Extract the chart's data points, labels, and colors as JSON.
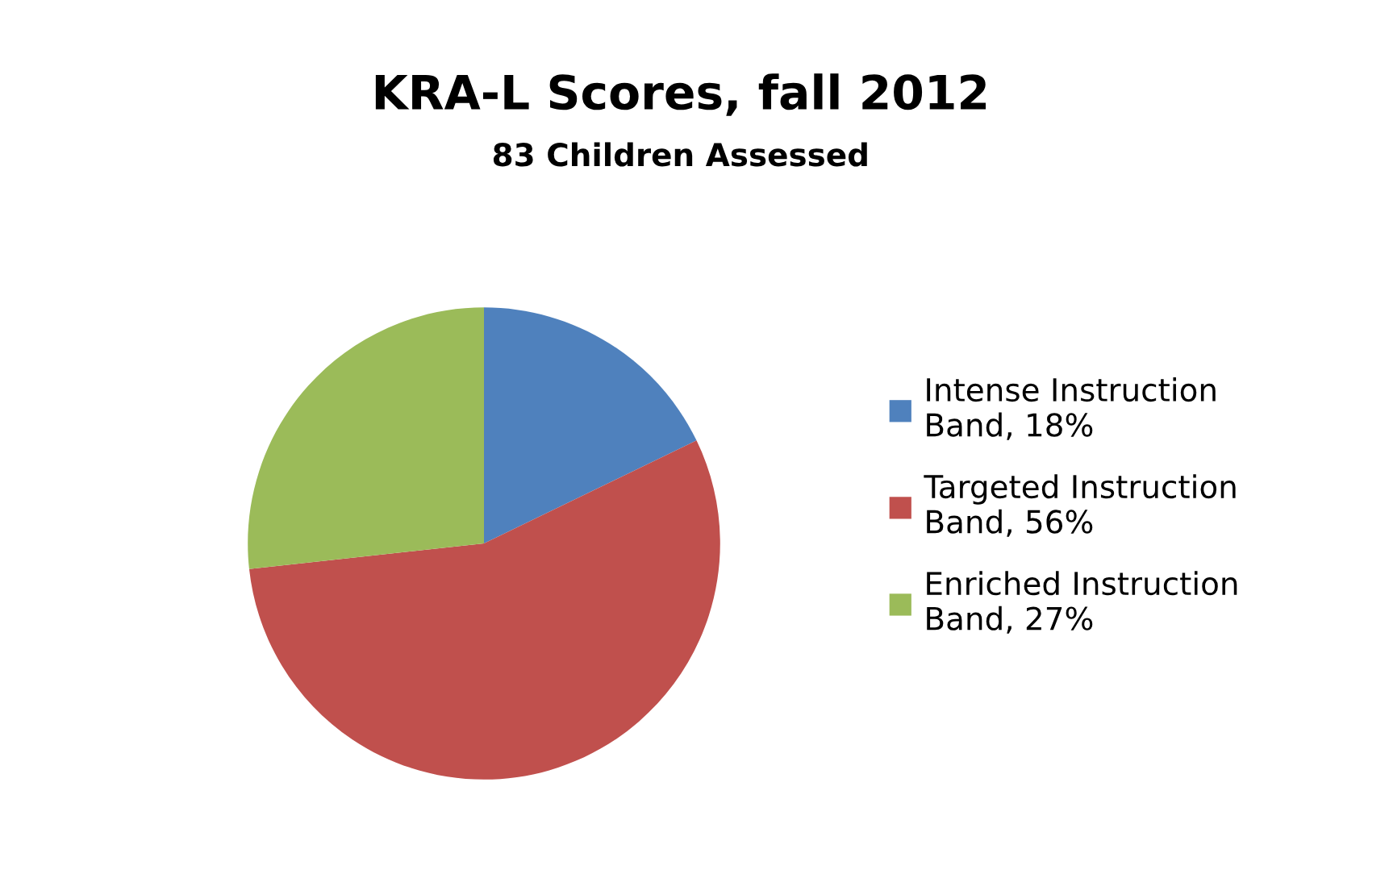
{
  "chart_data": {
    "type": "pie",
    "title": "KRA-L Scores, fall 2012",
    "subtitle": "83 Children Assessed",
    "categories": [
      "Intense Instruction\nBand, 18%",
      "Targeted Instruction\nBand, 56%",
      "Enriched Instruction\nBand, 27%"
    ],
    "values": [
      18,
      56,
      27
    ],
    "colors": [
      "#4f81bd",
      "#c0504d",
      "#9bbb59"
    ],
    "legend": "right"
  }
}
